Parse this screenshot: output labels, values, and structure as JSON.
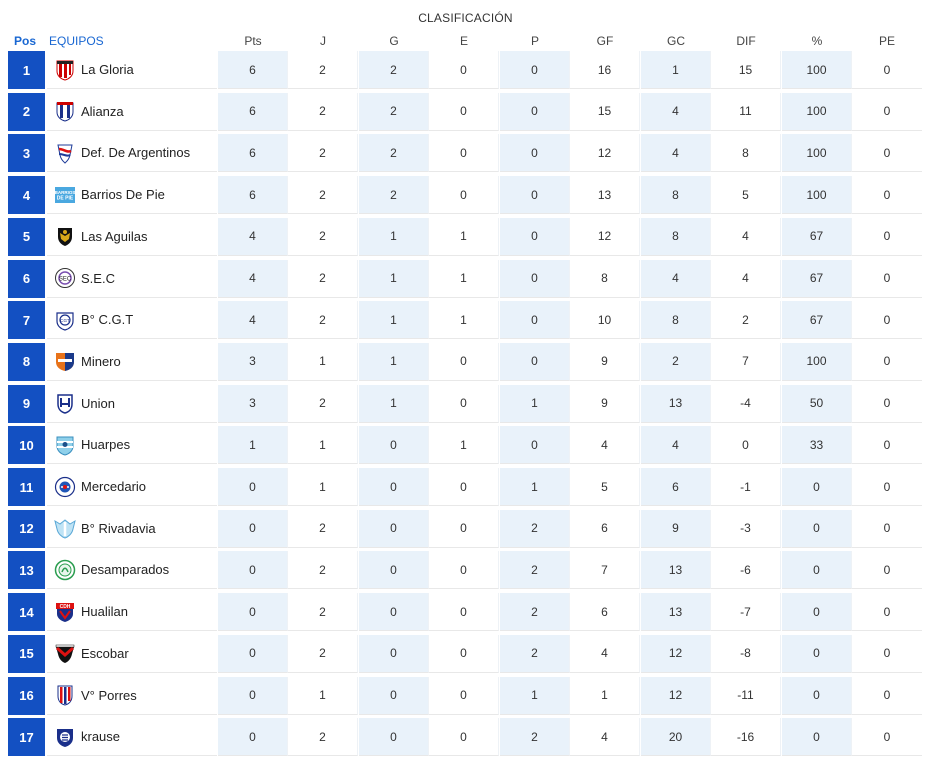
{
  "title": "CLASIFICACIÓN",
  "headers": {
    "pos": "Pos",
    "team": "EQUIPOS",
    "pts": "Pts",
    "j": "J",
    "g": "G",
    "e": "E",
    "p": "P",
    "gf": "GF",
    "gc": "GC",
    "dif": "DIF",
    "pct": "%",
    "pe": "PE"
  },
  "colors": {
    "pos_bg": "#1350c2",
    "header_accent": "#1967d2",
    "alt_column_bg": "#e9f2fa"
  },
  "rows": [
    {
      "pos": "1",
      "team": "La Gloria",
      "crest": "la-gloria-crest-icon",
      "pts": "6",
      "j": "2",
      "g": "2",
      "e": "0",
      "p": "0",
      "gf": "16",
      "gc": "1",
      "dif": "15",
      "pct": "100",
      "pe": "0"
    },
    {
      "pos": "2",
      "team": "Alianza",
      "crest": "alianza-crest-icon",
      "pts": "6",
      "j": "2",
      "g": "2",
      "e": "0",
      "p": "0",
      "gf": "15",
      "gc": "4",
      "dif": "11",
      "pct": "100",
      "pe": "0"
    },
    {
      "pos": "3",
      "team": "Def. De Argentinos",
      "crest": "def-de-argentinos-crest-icon",
      "pts": "6",
      "j": "2",
      "g": "2",
      "e": "0",
      "p": "0",
      "gf": "12",
      "gc": "4",
      "dif": "8",
      "pct": "100",
      "pe": "0"
    },
    {
      "pos": "4",
      "team": "Barrios De Pie",
      "crest": "barrios-de-pie-crest-icon",
      "pts": "6",
      "j": "2",
      "g": "2",
      "e": "0",
      "p": "0",
      "gf": "13",
      "gc": "8",
      "dif": "5",
      "pct": "100",
      "pe": "0"
    },
    {
      "pos": "5",
      "team": "Las Aguilas",
      "crest": "las-aguilas-crest-icon",
      "pts": "4",
      "j": "2",
      "g": "1",
      "e": "1",
      "p": "0",
      "gf": "12",
      "gc": "8",
      "dif": "4",
      "pct": "67",
      "pe": "0"
    },
    {
      "pos": "6",
      "team": "S.E.C",
      "crest": "sec-crest-icon",
      "pts": "4",
      "j": "2",
      "g": "1",
      "e": "1",
      "p": "0",
      "gf": "8",
      "gc": "4",
      "dif": "4",
      "pct": "67",
      "pe": "0"
    },
    {
      "pos": "7",
      "team": "B° C.G.T",
      "crest": "b-cgt-crest-icon",
      "pts": "4",
      "j": "2",
      "g": "1",
      "e": "1",
      "p": "0",
      "gf": "10",
      "gc": "8",
      "dif": "2",
      "pct": "67",
      "pe": "0"
    },
    {
      "pos": "8",
      "team": "Minero",
      "crest": "minero-crest-icon",
      "pts": "3",
      "j": "1",
      "g": "1",
      "e": "0",
      "p": "0",
      "gf": "9",
      "gc": "2",
      "dif": "7",
      "pct": "100",
      "pe": "0"
    },
    {
      "pos": "9",
      "team": "Union",
      "crest": "union-crest-icon",
      "pts": "3",
      "j": "2",
      "g": "1",
      "e": "0",
      "p": "1",
      "gf": "9",
      "gc": "13",
      "dif": "-4",
      "pct": "50",
      "pe": "0"
    },
    {
      "pos": "10",
      "team": "Huarpes",
      "crest": "huarpes-crest-icon",
      "pts": "1",
      "j": "1",
      "g": "0",
      "e": "1",
      "p": "0",
      "gf": "4",
      "gc": "4",
      "dif": "0",
      "pct": "33",
      "pe": "0"
    },
    {
      "pos": "11",
      "team": "Mercedario",
      "crest": "mercedario-crest-icon",
      "pts": "0",
      "j": "1",
      "g": "0",
      "e": "0",
      "p": "1",
      "gf": "5",
      "gc": "6",
      "dif": "-1",
      "pct": "0",
      "pe": "0"
    },
    {
      "pos": "12",
      "team": "B° Rivadavia",
      "crest": "b-rivadavia-crest-icon",
      "pts": "0",
      "j": "2",
      "g": "0",
      "e": "0",
      "p": "2",
      "gf": "6",
      "gc": "9",
      "dif": "-3",
      "pct": "0",
      "pe": "0"
    },
    {
      "pos": "13",
      "team": "Desamparados",
      "crest": "desamparados-crest-icon",
      "pts": "0",
      "j": "2",
      "g": "0",
      "e": "0",
      "p": "2",
      "gf": "7",
      "gc": "13",
      "dif": "-6",
      "pct": "0",
      "pe": "0"
    },
    {
      "pos": "14",
      "team": "Hualilan",
      "crest": "hualilan-crest-icon",
      "pts": "0",
      "j": "2",
      "g": "0",
      "e": "0",
      "p": "2",
      "gf": "6",
      "gc": "13",
      "dif": "-7",
      "pct": "0",
      "pe": "0"
    },
    {
      "pos": "15",
      "team": "Escobar",
      "crest": "escobar-crest-icon",
      "pts": "0",
      "j": "2",
      "g": "0",
      "e": "0",
      "p": "2",
      "gf": "4",
      "gc": "12",
      "dif": "-8",
      "pct": "0",
      "pe": "0"
    },
    {
      "pos": "16",
      "team": "V° Porres",
      "crest": "v-porres-crest-icon",
      "pts": "0",
      "j": "1",
      "g": "0",
      "e": "0",
      "p": "1",
      "gf": "1",
      "gc": "12",
      "dif": "-11",
      "pct": "0",
      "pe": "0"
    },
    {
      "pos": "17",
      "team": "krause",
      "crest": "krause-crest-icon",
      "pts": "0",
      "j": "2",
      "g": "0",
      "e": "0",
      "p": "2",
      "gf": "4",
      "gc": "20",
      "dif": "-16",
      "pct": "0",
      "pe": "0"
    }
  ]
}
